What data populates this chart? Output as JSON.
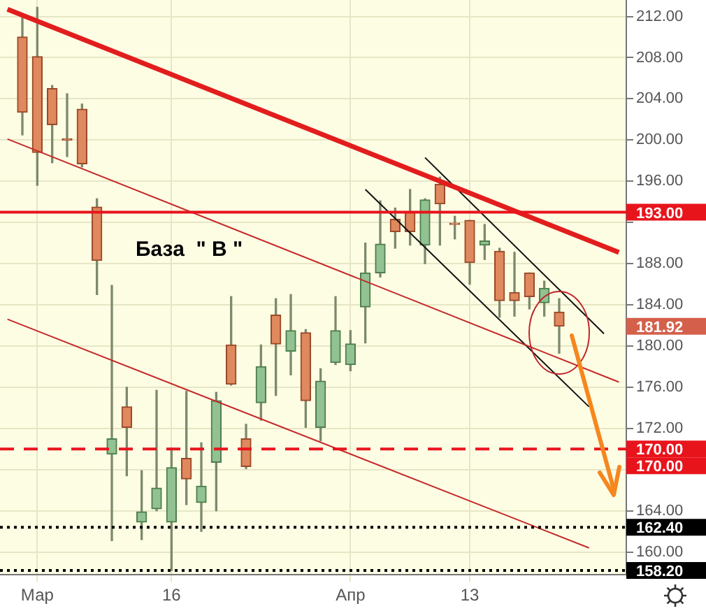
{
  "chart_data": {
    "type": "candlestick",
    "categories": [
      null,
      null,
      "Мар",
      null,
      null,
      null,
      null,
      null,
      null,
      null,
      null,
      "16",
      null,
      null,
      null,
      null,
      null,
      null,
      null,
      null,
      null,
      null,
      null,
      "Апр",
      null,
      null,
      null,
      null,
      null,
      null,
      null,
      "13",
      null,
      null,
      null,
      null,
      null,
      null,
      null,
      null,
      null,
      null
    ],
    "ohlc": [
      null,
      [
        210.0,
        212.0,
        200.5,
        202.7
      ],
      [
        208.1,
        212.9,
        195.6,
        198.8
      ],
      [
        205.0,
        205.3,
        197.8,
        201.5
      ],
      [
        200.1,
        204.5,
        198.4,
        200.0
      ],
      [
        203.0,
        203.5,
        197.4,
        197.7
      ],
      [
        193.5,
        194.3,
        185.0,
        188.3
      ],
      [
        169.5,
        185.9,
        161.1,
        171.0
      ],
      [
        174.1,
        176.0,
        167.4,
        172.1
      ],
      [
        162.9,
        167.9,
        161.2,
        163.9
      ],
      [
        164.2,
        175.7,
        164.0,
        166.2
      ],
      [
        162.9,
        170.1,
        158.2,
        168.2
      ],
      [
        169.1,
        175.6,
        164.6,
        167.1
      ],
      [
        164.8,
        170.6,
        162.0,
        166.4
      ],
      [
        168.7,
        175.5,
        164.0,
        174.7
      ],
      [
        180.1,
        184.8,
        176.2,
        176.3
      ],
      [
        171.0,
        172.4,
        168.1,
        168.3
      ],
      [
        174.5,
        180.1,
        172.8,
        178.0
      ],
      [
        183.0,
        184.6,
        175.2,
        180.2
      ],
      [
        179.5,
        185.0,
        177.2,
        181.5
      ],
      [
        181.3,
        181.6,
        172.1,
        174.7
      ],
      [
        172.1,
        177.8,
        170.8,
        176.6
      ],
      [
        178.4,
        184.8,
        178.2,
        181.5
      ],
      [
        178.2,
        181.5,
        177.6,
        180.2
      ],
      [
        183.8,
        190.0,
        180.3,
        187.1
      ],
      [
        187.1,
        194.1,
        186.7,
        189.9
      ],
      [
        192.3,
        193.4,
        189.5,
        191.1
      ],
      [
        193.0,
        195.2,
        189.8,
        191.1
      ],
      [
        189.8,
        194.3,
        188.0,
        194.2
      ],
      [
        195.7,
        196.4,
        189.8,
        193.8
      ],
      [
        191.9,
        192.6,
        190.4,
        191.8
      ],
      [
        192.2,
        192.2,
        186.0,
        188.1
      ],
      [
        189.8,
        191.8,
        188.4,
        190.2
      ],
      [
        189.2,
        189.5,
        182.8,
        184.4
      ],
      [
        185.2,
        189.1,
        182.9,
        184.4
      ],
      [
        187.1,
        187.1,
        183.6,
        184.8
      ],
      [
        184.2,
        186.3,
        182.9,
        185.6
      ],
      [
        183.3,
        184.6,
        179.3,
        181.92
      ],
      null,
      null,
      null,
      null
    ],
    "series": [
      {
        "type": "line",
        "color": "#e21d1d",
        "values": [
          212.7,
          null,
          null,
          null,
          null,
          null,
          null,
          null,
          null,
          null,
          null,
          null,
          null,
          null,
          null,
          null,
          null,
          null,
          null,
          null,
          null,
          null,
          null,
          null,
          null,
          null,
          null,
          null,
          null,
          null,
          null,
          null,
          null,
          null,
          null,
          null,
          null,
          null,
          null,
          null,
          null,
          189.1
        ]
      },
      {
        "type": "line",
        "color": "#c42a2a",
        "values": [
          200.1,
          null,
          null,
          null,
          null,
          null,
          null,
          null,
          null,
          null,
          null,
          null,
          null,
          null,
          null,
          null,
          null,
          null,
          null,
          null,
          null,
          null,
          null,
          null,
          null,
          null,
          null,
          null,
          null,
          null,
          null,
          null,
          null,
          null,
          null,
          null,
          null,
          null,
          null,
          null,
          null,
          176.5
        ]
      },
      {
        "type": "line",
        "color": "#c42a2a",
        "values": [
          182.6,
          null,
          null,
          null,
          null,
          null,
          null,
          null,
          null,
          null,
          null,
          null,
          null,
          null,
          null,
          null,
          null,
          null,
          null,
          null,
          null,
          null,
          null,
          null,
          null,
          null,
          null,
          null,
          null,
          null,
          null,
          null,
          null,
          null,
          null,
          null,
          null,
          null,
          null,
          160.4,
          null,
          null
        ]
      },
      {
        "type": "line",
        "color": "#111111",
        "values": [
          null,
          null,
          null,
          null,
          null,
          null,
          null,
          null,
          null,
          null,
          null,
          null,
          null,
          null,
          null,
          null,
          null,
          null,
          null,
          null,
          null,
          null,
          null,
          null,
          195.2,
          null,
          null,
          null,
          null,
          null,
          null,
          null,
          null,
          null,
          null,
          null,
          null,
          null,
          null,
          174.1,
          null,
          null
        ]
      },
      {
        "type": "line",
        "color": "#111111",
        "values": [
          null,
          null,
          null,
          null,
          null,
          null,
          null,
          null,
          null,
          null,
          null,
          null,
          null,
          null,
          null,
          null,
          null,
          null,
          null,
          null,
          null,
          null,
          null,
          null,
          null,
          null,
          null,
          null,
          198.3,
          null,
          null,
          null,
          null,
          null,
          null,
          null,
          null,
          null,
          null,
          null,
          181.2,
          null
        ]
      }
    ],
    "ylim": [
      157.8,
      213.6
    ],
    "yticks": [
      {
        "value": 160,
        "label": "160.00"
      },
      {
        "value": 164,
        "label": "164.00"
      },
      {
        "value": 168,
        "label": null
      },
      {
        "value": 172,
        "label": "172.00"
      },
      {
        "value": 176,
        "label": "176.00"
      },
      {
        "value": 180,
        "label": "180.00"
      },
      {
        "value": 184,
        "label": "184.00"
      },
      {
        "value": 188,
        "label": "188.00"
      },
      {
        "value": 192,
        "label": null
      },
      {
        "value": 196,
        "label": "196.00"
      },
      {
        "value": 200,
        "label": "200.00"
      },
      {
        "value": 204,
        "label": "204.00"
      },
      {
        "value": 208,
        "label": "208.00"
      },
      {
        "value": 212,
        "label": "212.00"
      }
    ],
    "grid": true,
    "legend": false,
    "ref_lines": [
      {
        "axis": "y",
        "value": 193,
        "label": "193.00",
        "color": "#e8141c",
        "line_style": "solid"
      },
      {
        "axis": "y",
        "value": 170,
        "label": "170.00",
        "color": "#e8141c",
        "line_style": "dashed"
      },
      {
        "axis": "y",
        "value": 162.4,
        "label": "162.40",
        "color": "#000000",
        "line_style": "dotted"
      },
      {
        "axis": "y",
        "value": 158.2,
        "label": "158.20",
        "color": "#000000",
        "line_style": "dotted"
      }
    ],
    "annotations": [
      "База  \" В \"",
      "181.92",
      "170.00"
    ]
  }
}
